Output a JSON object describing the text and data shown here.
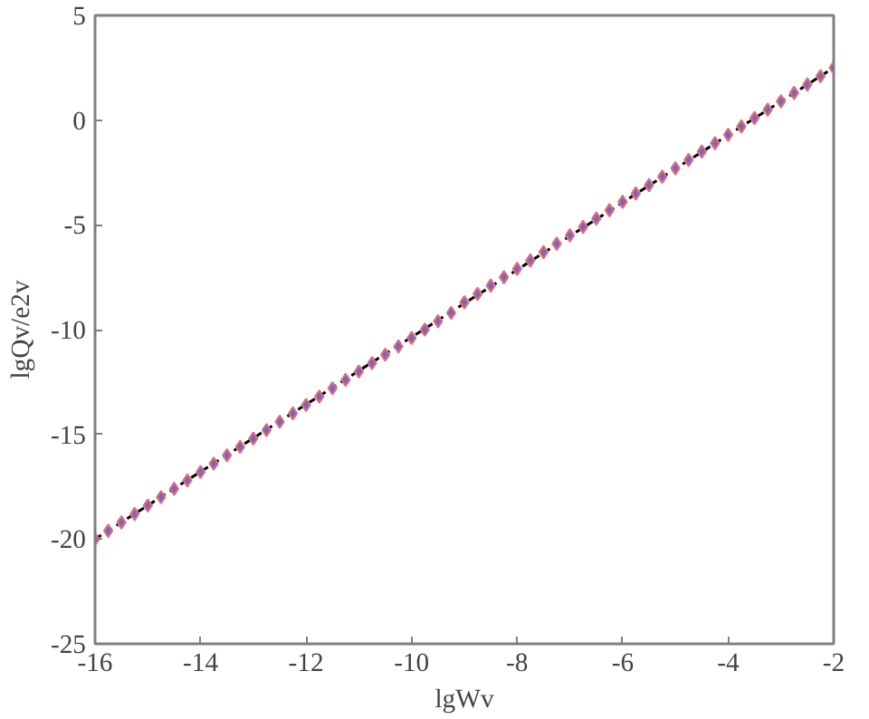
{
  "chart_data": {
    "type": "scatter",
    "xlabel": "lgWv",
    "ylabel": "lgQv/e2v",
    "xlim": [
      -16,
      -2
    ],
    "xticks": [
      -16,
      -14,
      -12,
      -10,
      -8,
      -6,
      -4,
      -2
    ],
    "ylim": [
      -25,
      5
    ],
    "yticks": [
      -25,
      -20,
      -15,
      -10,
      -5,
      0,
      5
    ],
    "grid": false,
    "marker": "diamond",
    "series": [
      {
        "type": "line",
        "color": "#000000",
        "line_style": "dashed",
        "marker": "none",
        "x": [
          -16,
          -2
        ],
        "values": [
          -20.0,
          2.5
        ]
      },
      {
        "color": "#7b68b0",
        "x": [
          -16,
          -15.75,
          -15.5,
          -15.25,
          -15,
          -14.75,
          -14.5,
          -14.25,
          -14,
          -13.75,
          -13.5,
          -13.25,
          -13,
          -12.75,
          -12.5,
          -12.25,
          -12,
          -11.75,
          -11.5,
          -11.25,
          -11,
          -10.75,
          -10.5,
          -10.25,
          -10,
          -9.75,
          -9.5,
          -9.25,
          -9,
          -8.75,
          -8.5,
          -8.25,
          -8,
          -7.75,
          -7.5,
          -7.25,
          -7,
          -6.75,
          -6.5,
          -6.25,
          -6,
          -5.75,
          -5.5,
          -5.25,
          -5,
          -4.75,
          -4.5,
          -4.25,
          -4,
          -3.75,
          -3.5,
          -3.25,
          -3,
          -2.75,
          -2.5,
          -2.25,
          -2
        ],
        "values": [
          -20.0,
          -19.6,
          -19.2,
          -18.8,
          -18.4,
          -18.0,
          -17.6,
          -17.2,
          -16.8,
          -16.4,
          -16.0,
          -15.6,
          -15.2,
          -14.8,
          -14.4,
          -14.0,
          -13.6,
          -13.2,
          -12.8,
          -12.4,
          -12.0,
          -11.6,
          -11.2,
          -10.8,
          -10.4,
          -10.0,
          -9.6,
          -9.2,
          -8.7,
          -8.3,
          -7.9,
          -7.5,
          -7.1,
          -6.7,
          -6.3,
          -5.9,
          -5.5,
          -5.1,
          -4.7,
          -4.3,
          -3.9,
          -3.5,
          -3.1,
          -2.7,
          -2.3,
          -1.9,
          -1.5,
          -1.1,
          -0.7,
          -0.3,
          0.1,
          0.5,
          0.9,
          1.3,
          1.7,
          2.1,
          2.5
        ]
      }
    ]
  }
}
